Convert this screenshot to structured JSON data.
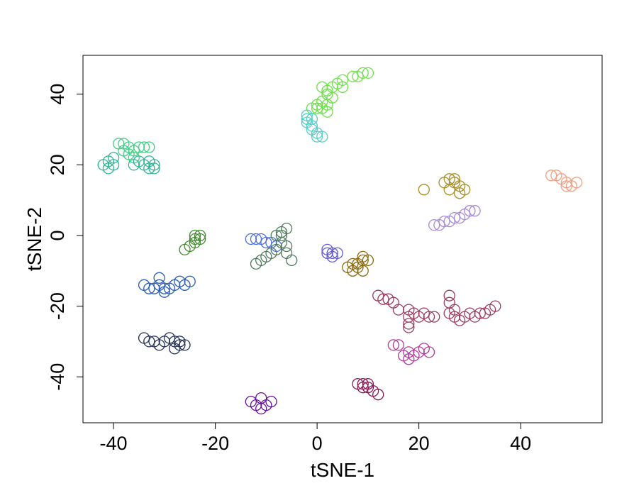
{
  "chart_data": {
    "type": "scatter",
    "title": "",
    "xlabel": "tSNE-1",
    "ylabel": "tSNE-2",
    "xlim": [
      -46,
      56
    ],
    "ylim": [
      -53,
      51
    ],
    "xticks": [
      "-40",
      "-20",
      "0",
      "20",
      "40"
    ],
    "yticks": [
      "-40",
      "-20",
      "0",
      "20",
      "40"
    ],
    "marker": "open-circle",
    "grid": false,
    "legend": "none",
    "series": [
      {
        "color": "#6fe04a",
        "points": [
          [
            -1,
            36
          ],
          [
            0,
            37
          ],
          [
            1,
            36
          ],
          [
            2,
            37
          ],
          [
            1,
            38
          ],
          [
            2,
            40
          ],
          [
            3,
            42
          ],
          [
            2,
            41
          ],
          [
            4,
            43
          ],
          [
            5,
            42
          ],
          [
            5,
            44
          ],
          [
            7,
            45
          ],
          [
            8,
            45
          ],
          [
            9,
            46
          ],
          [
            10,
            46
          ],
          [
            1,
            42
          ],
          [
            3,
            39
          ],
          [
            0,
            36
          ],
          [
            2,
            35
          ]
        ]
      },
      {
        "color": "#57cdc9",
        "points": [
          [
            -2,
            34
          ],
          [
            -1,
            33
          ],
          [
            -2,
            32
          ],
          [
            -1,
            31
          ],
          [
            0,
            29
          ],
          [
            1,
            28
          ],
          [
            0,
            28
          ],
          [
            -1,
            30
          ],
          [
            -2,
            33
          ]
        ]
      },
      {
        "color": "#3ecf83",
        "points": [
          [
            -39,
            26
          ],
          [
            -38,
            26
          ],
          [
            -37,
            25
          ],
          [
            -36,
            24
          ],
          [
            -35,
            25
          ],
          [
            -34,
            25
          ],
          [
            -33,
            25
          ],
          [
            -37,
            23
          ],
          [
            -36,
            22
          ],
          [
            -38,
            24
          ]
        ]
      },
      {
        "color": "#2bb594",
        "points": [
          [
            -41,
            19
          ],
          [
            -42,
            20
          ],
          [
            -40,
            20
          ],
          [
            -41,
            21
          ],
          [
            -40,
            22
          ],
          [
            -36,
            20
          ],
          [
            -35,
            21
          ],
          [
            -34,
            20
          ],
          [
            -33,
            21
          ],
          [
            -32,
            20
          ],
          [
            -33,
            19
          ],
          [
            -32,
            19
          ]
        ]
      },
      {
        "color": "#3f8a2d",
        "points": [
          [
            -26,
            -4
          ],
          [
            -25,
            -3
          ],
          [
            -24,
            -2
          ],
          [
            -23,
            -1
          ],
          [
            -23,
            0
          ],
          [
            -24,
            -1
          ],
          [
            -24,
            0
          ]
        ]
      },
      {
        "color": "#4c6de0",
        "points": [
          [
            -13,
            -1
          ],
          [
            -12,
            -1
          ],
          [
            -11,
            -1
          ],
          [
            -10,
            -2
          ],
          [
            -9,
            -2
          ],
          [
            -8,
            -3
          ]
        ]
      },
      {
        "color": "#4e7a5b",
        "points": [
          [
            -12,
            -8
          ],
          [
            -11,
            -7
          ],
          [
            -10,
            -6
          ],
          [
            -9,
            -5
          ],
          [
            -8,
            -4
          ],
          [
            -7,
            -2
          ],
          [
            -8,
            0
          ],
          [
            -7,
            1
          ],
          [
            -6,
            2
          ],
          [
            -6,
            -3
          ],
          [
            -6,
            -5
          ],
          [
            -5,
            -7
          ],
          [
            -7,
            0
          ]
        ]
      },
      {
        "color": "#5e58d6",
        "points": [
          [
            2,
            -5
          ],
          [
            3,
            -5
          ],
          [
            4,
            -5
          ],
          [
            3,
            -6
          ],
          [
            2,
            -4
          ]
        ]
      },
      {
        "color": "#8c6a10",
        "points": [
          [
            6,
            -9
          ],
          [
            7,
            -8
          ],
          [
            8,
            -9
          ],
          [
            9,
            -10
          ],
          [
            8,
            -8
          ],
          [
            9,
            -7
          ],
          [
            9,
            -6
          ],
          [
            10,
            -7
          ],
          [
            7,
            -10
          ]
        ]
      },
      {
        "color": "#2a5fb5",
        "points": [
          [
            -34,
            -14
          ],
          [
            -33,
            -15
          ],
          [
            -32,
            -15
          ],
          [
            -31,
            -14
          ],
          [
            -30,
            -16
          ],
          [
            -29,
            -15
          ],
          [
            -28,
            -14
          ],
          [
            -27,
            -13
          ],
          [
            -26,
            -14
          ],
          [
            -25,
            -13
          ],
          [
            -31,
            -12
          ],
          [
            -30,
            -15
          ]
        ]
      },
      {
        "color": "#223055",
        "points": [
          [
            -34,
            -29
          ],
          [
            -33,
            -30
          ],
          [
            -32,
            -30
          ],
          [
            -31,
            -31
          ],
          [
            -30,
            -30
          ],
          [
            -29,
            -29
          ],
          [
            -28,
            -30
          ],
          [
            -27,
            -31
          ],
          [
            -28,
            -32
          ],
          [
            -27,
            -30
          ],
          [
            -26,
            -31
          ]
        ]
      },
      {
        "color": "#6a0aa6",
        "points": [
          [
            -13,
            -47
          ],
          [
            -12,
            -48
          ],
          [
            -11,
            -49
          ],
          [
            -10,
            -48
          ],
          [
            -9,
            -47
          ],
          [
            -11,
            -46
          ]
        ]
      },
      {
        "color": "#8a1b58",
        "points": [
          [
            8,
            -42
          ],
          [
            9,
            -43
          ],
          [
            10,
            -43
          ],
          [
            11,
            -44
          ],
          [
            12,
            -45
          ],
          [
            9,
            -42
          ],
          [
            10,
            -42
          ]
        ]
      },
      {
        "color": "#b5399a",
        "points": [
          [
            15,
            -31
          ],
          [
            16,
            -31
          ],
          [
            17,
            -34
          ],
          [
            18,
            -35
          ],
          [
            19,
            -34
          ],
          [
            20,
            -33
          ],
          [
            21,
            -32
          ],
          [
            22,
            -33
          ],
          [
            18,
            -33
          ]
        ]
      },
      {
        "color": "#9e3a5c",
        "points": [
          [
            12,
            -17
          ],
          [
            13,
            -18
          ],
          [
            14,
            -18
          ],
          [
            15,
            -19
          ],
          [
            16,
            -21
          ],
          [
            18,
            -21
          ],
          [
            18,
            -23
          ],
          [
            18,
            -25
          ],
          [
            18,
            -26
          ],
          [
            19,
            -22
          ],
          [
            20,
            -23
          ],
          [
            21,
            -22
          ],
          [
            22,
            -23
          ],
          [
            23,
            -23
          ],
          [
            26,
            -17
          ],
          [
            26,
            -19
          ],
          [
            26,
            -22
          ],
          [
            27,
            -23
          ],
          [
            28,
            -24
          ],
          [
            29,
            -23
          ],
          [
            30,
            -22
          ],
          [
            31,
            -23
          ],
          [
            32,
            -22
          ],
          [
            33,
            -22
          ],
          [
            34,
            -21
          ],
          [
            35,
            -20
          ],
          [
            27,
            -21
          ]
        ]
      },
      {
        "color": "#a88f2a",
        "points": [
          [
            21,
            13
          ],
          [
            25,
            15
          ],
          [
            26,
            16
          ],
          [
            26,
            13
          ],
          [
            27,
            16
          ],
          [
            27,
            15
          ],
          [
            28,
            14
          ],
          [
            29,
            13
          ],
          [
            28,
            12
          ]
        ]
      },
      {
        "color": "#a888d6",
        "points": [
          [
            23,
            3
          ],
          [
            24,
            3
          ],
          [
            25,
            4
          ],
          [
            26,
            4
          ],
          [
            27,
            5
          ],
          [
            28,
            5
          ],
          [
            29,
            6
          ],
          [
            30,
            7
          ],
          [
            31,
            7
          ]
        ]
      },
      {
        "color": "#f2a083",
        "points": [
          [
            46,
            17
          ],
          [
            47,
            17
          ],
          [
            48,
            16
          ],
          [
            49,
            15
          ],
          [
            50,
            14
          ],
          [
            51,
            15
          ],
          [
            49,
            14
          ]
        ]
      }
    ]
  }
}
